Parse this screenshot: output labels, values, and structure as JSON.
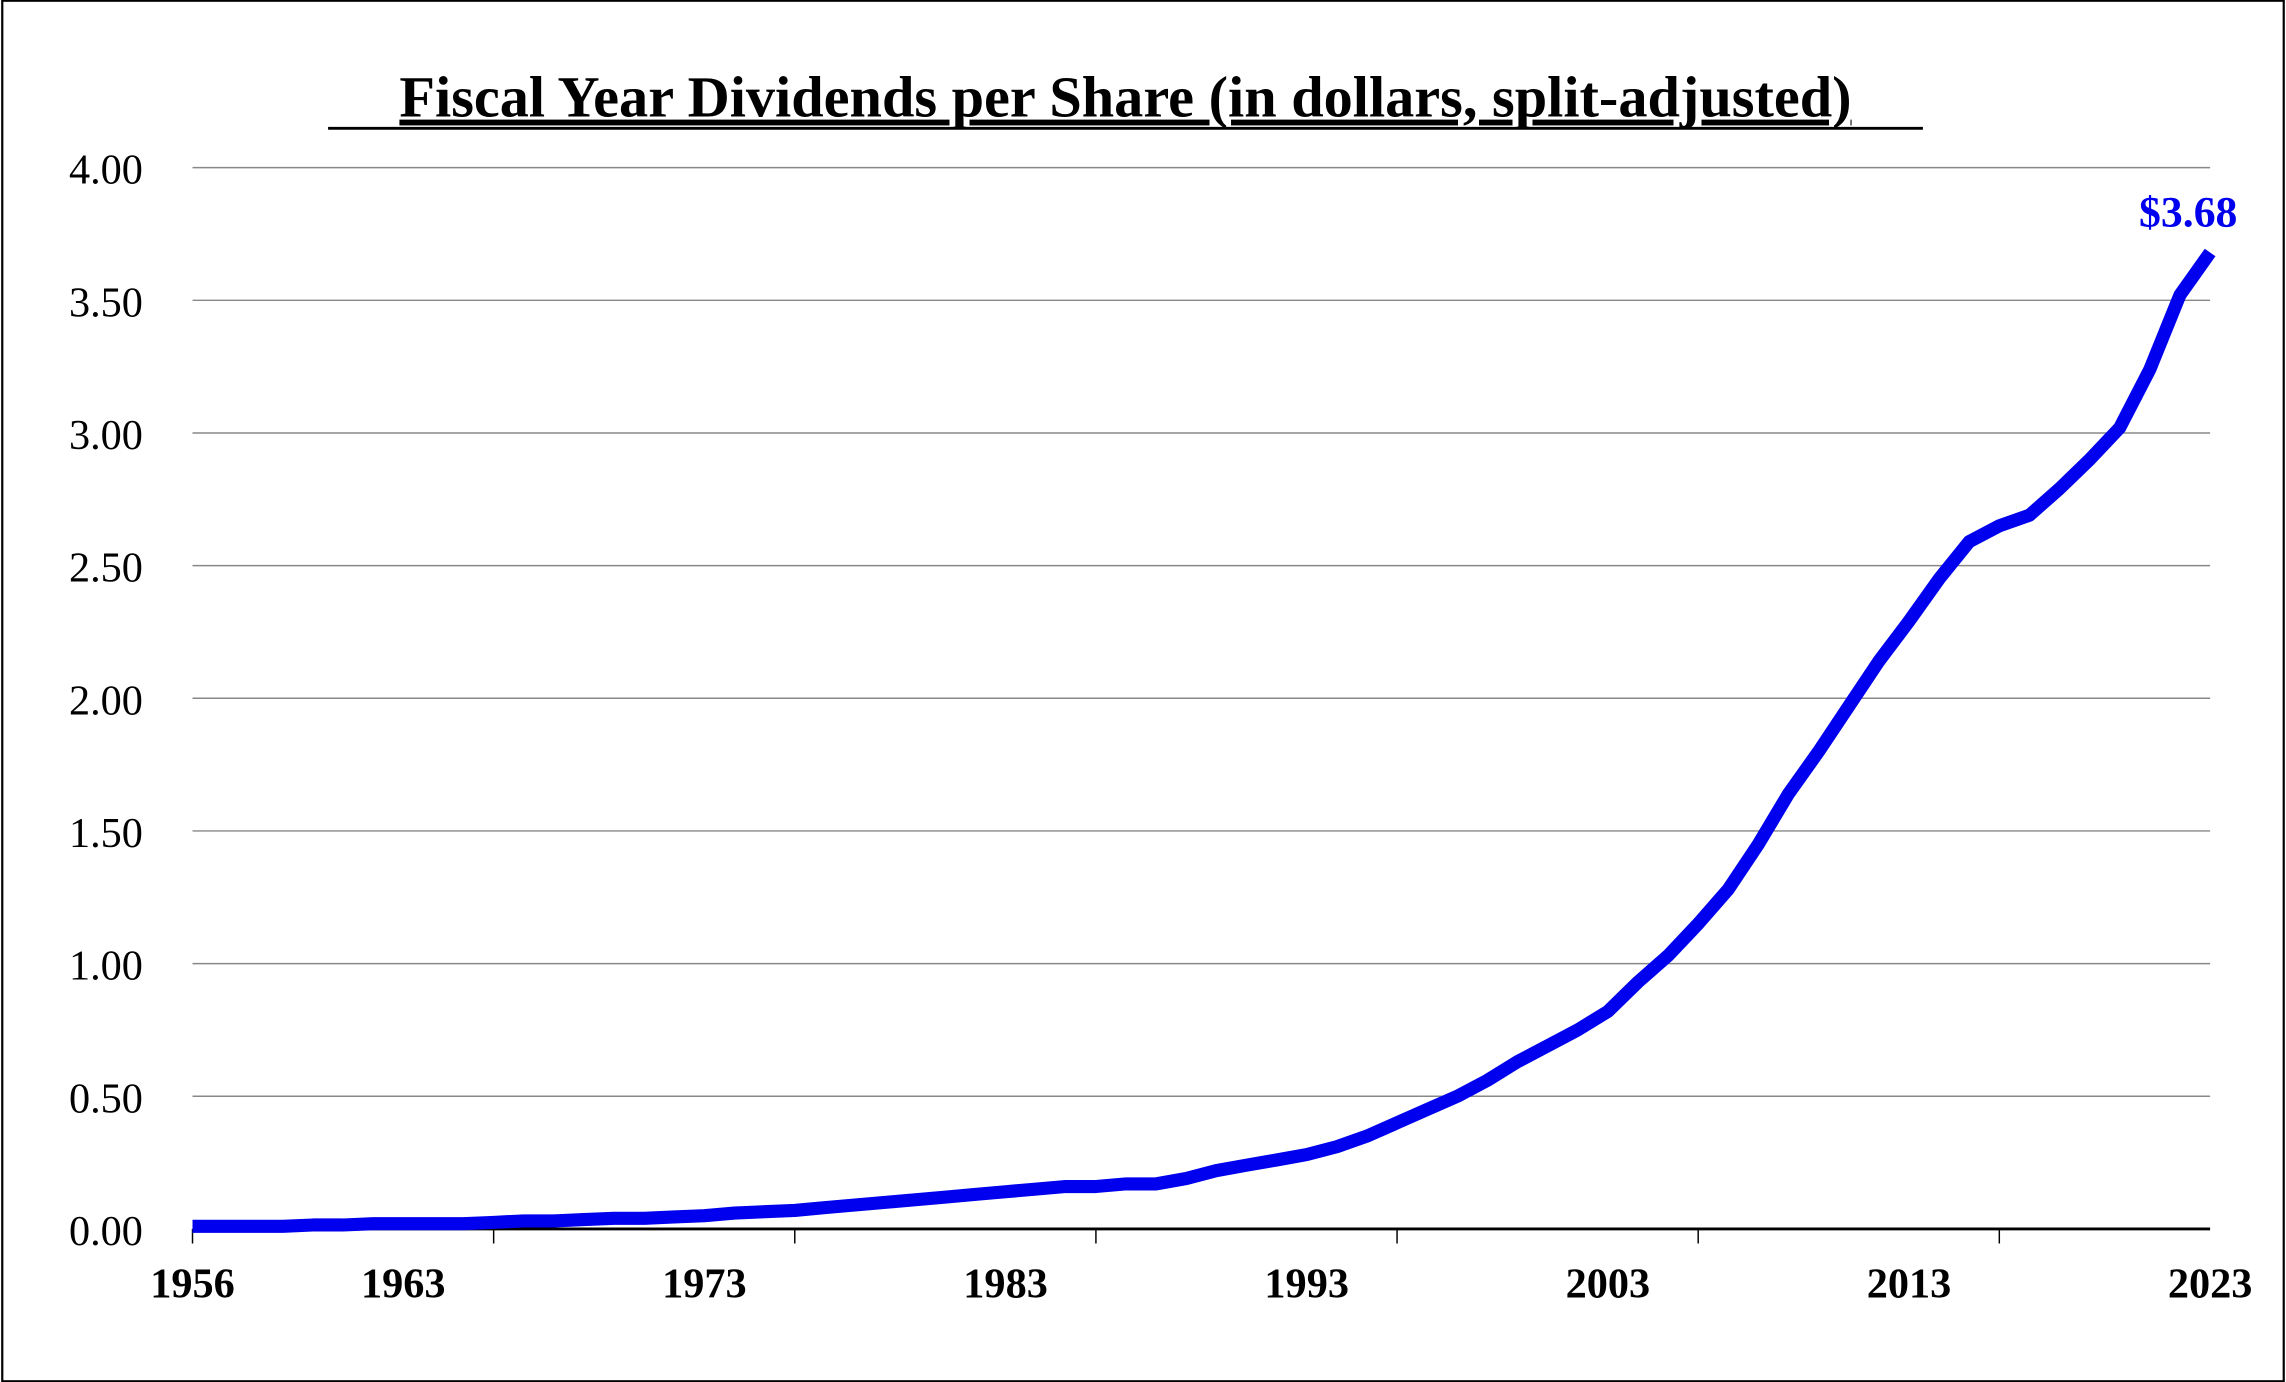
{
  "chart_data": {
    "type": "line",
    "title": "Fiscal Year Dividends per Share (in dollars, split-adjusted)",
    "xlabel": "",
    "ylabel": "",
    "ylim": [
      0,
      4
    ],
    "yticks": [
      "0.00",
      "0.50",
      "1.00",
      "1.50",
      "2.00",
      "2.50",
      "3.00",
      "3.50",
      "4.00"
    ],
    "xlim": [
      1956,
      2023
    ],
    "xtick_labels": [
      "1956",
      "1963",
      "1973",
      "1983",
      "1993",
      "2003",
      "2013",
      "2023"
    ],
    "grid": "horizontal",
    "line_color": "#0000ee",
    "annotation": {
      "year": 2023,
      "text": "$3.68"
    },
    "x": [
      1956,
      1957,
      1958,
      1959,
      1960,
      1961,
      1962,
      1963,
      1964,
      1965,
      1966,
      1967,
      1968,
      1969,
      1970,
      1971,
      1972,
      1973,
      1974,
      1975,
      1976,
      1977,
      1978,
      1979,
      1980,
      1981,
      1982,
      1983,
      1984,
      1985,
      1986,
      1987,
      1988,
      1989,
      1990,
      1991,
      1992,
      1993,
      1994,
      1995,
      1996,
      1997,
      1998,
      1999,
      2000,
      2001,
      2002,
      2003,
      2004,
      2005,
      2006,
      2007,
      2008,
      2009,
      2010,
      2011,
      2012,
      2013,
      2014,
      2015,
      2016,
      2017,
      2018,
      2019,
      2020,
      2021,
      2022,
      2023
    ],
    "values": [
      0.01,
      0.01,
      0.01,
      0.01,
      0.015,
      0.015,
      0.02,
      0.02,
      0.02,
      0.02,
      0.025,
      0.03,
      0.03,
      0.035,
      0.04,
      0.04,
      0.045,
      0.05,
      0.06,
      0.065,
      0.07,
      0.08,
      0.09,
      0.1,
      0.11,
      0.12,
      0.13,
      0.14,
      0.15,
      0.16,
      0.16,
      0.17,
      0.17,
      0.19,
      0.22,
      0.24,
      0.26,
      0.28,
      0.31,
      0.35,
      0.4,
      0.45,
      0.5,
      0.56,
      0.63,
      0.69,
      0.75,
      0.82,
      0.93,
      1.03,
      1.15,
      1.28,
      1.45,
      1.64,
      1.8,
      1.97,
      2.14,
      2.29,
      2.45,
      2.59,
      2.65,
      2.69,
      2.79,
      2.9,
      3.02,
      3.24,
      3.52,
      3.68
    ]
  }
}
